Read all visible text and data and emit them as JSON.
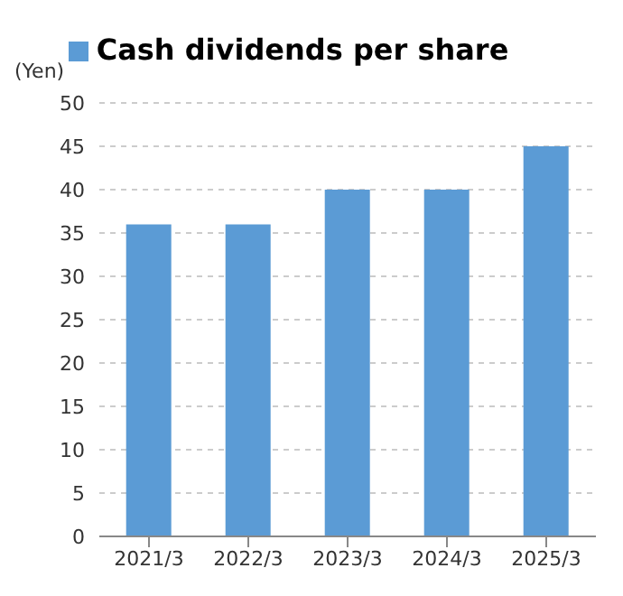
{
  "chart_data": {
    "type": "bar",
    "ylabel": "(Yen)",
    "categories": [
      "2021/3",
      "2022/3",
      "2023/3",
      "2024/3",
      "2025/3"
    ],
    "series": [
      {
        "name": "Cash dividends per share",
        "color": "#5b9bd5",
        "values": [
          36,
          36,
          40,
          40,
          45
        ]
      }
    ],
    "ylim": [
      0,
      50
    ],
    "yticks": [
      0,
      5,
      10,
      15,
      20,
      25,
      30,
      35,
      40,
      45,
      50
    ],
    "grid": "y",
    "legend": "top"
  }
}
